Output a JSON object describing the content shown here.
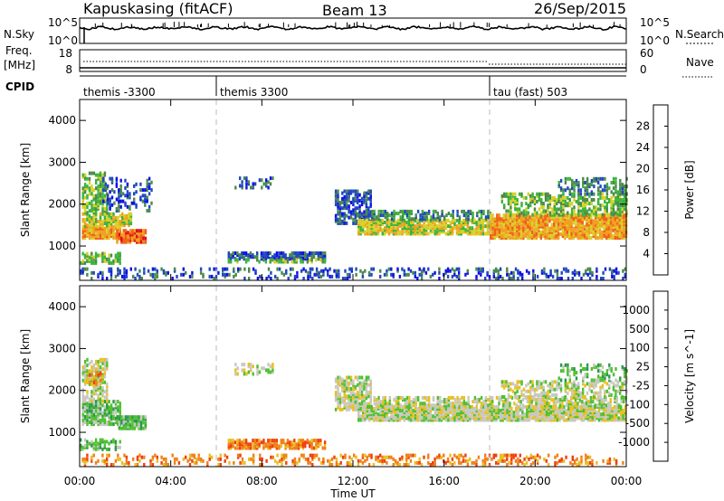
{
  "header": {
    "title": "Kapuskasing (fitACF)",
    "beam": "Beam 13",
    "date": "26/Sep/2015"
  },
  "status_panels": {
    "nsky_label": "N.Sky",
    "nsky_ticks": [
      "10^5",
      "10^0"
    ],
    "nsearch_label": "N.Search",
    "nsearch_ticks": [
      "10^5",
      "10^0"
    ],
    "freq_label": "Freq.",
    "freq_unit": "[MHz]",
    "freq_ticks": [
      "18",
      "8"
    ],
    "nave_label": "Nave",
    "nave_ticks": [
      "60",
      "0"
    ],
    "cpid_label": "CPID",
    "cpid_segments": [
      {
        "label": "themis -3300",
        "start_hour": 0
      },
      {
        "label": "themis 3300",
        "start_hour": 6
      },
      {
        "label": "tau (fast) 503",
        "start_hour": 18
      }
    ]
  },
  "chart_data": [
    {
      "type": "heatmap",
      "panel": "power",
      "ylabel": "Slant Range [km]",
      "xlabel": "Time UT",
      "x_ticks": [
        "00:00",
        "04:00",
        "08:00",
        "12:00",
        "16:00",
        "20:00",
        "00:00"
      ],
      "xlim": [
        0,
        24
      ],
      "ylim": [
        180,
        4500
      ],
      "y_ticks": [
        1000,
        2000,
        3000,
        4000
      ],
      "colorbar_label": "Power [dB]",
      "colorbar_ticks": [
        "4",
        "8",
        "12",
        "16",
        "20",
        "24",
        "28"
      ],
      "colorbar_colors": [
        "#1010e8",
        "#2048c0",
        "#4a8a4a",
        "#3cb43c",
        "#d8d028",
        "#f0a020",
        "#f06018",
        "#e01010"
      ],
      "regions": [
        {
          "t0": 0.1,
          "t1": 1.8,
          "r0": 1150,
          "r1": 1450,
          "c": 5,
          "d": 0.85
        },
        {
          "t0": 0.1,
          "t1": 2.3,
          "r0": 1450,
          "r1": 1750,
          "c": 4,
          "d": 0.7
        },
        {
          "t0": 0.1,
          "t1": 1.2,
          "r0": 1750,
          "r1": 2700,
          "c": 3,
          "d": 0.5
        },
        {
          "t0": 1.6,
          "t1": 2.9,
          "r0": 1050,
          "r1": 1350,
          "c": 6,
          "d": 0.8
        },
        {
          "t0": 1.0,
          "t1": 3.2,
          "r0": 1800,
          "r1": 2600,
          "c": 1,
          "d": 0.25
        },
        {
          "t0": 0.0,
          "t1": 1.8,
          "r0": 550,
          "r1": 800,
          "c": 3,
          "d": 0.5
        },
        {
          "t0": 6.5,
          "t1": 10.8,
          "r0": 650,
          "r1": 800,
          "c": 1,
          "d": 0.75
        },
        {
          "t0": 6.5,
          "t1": 10.8,
          "r0": 580,
          "r1": 650,
          "c": 3,
          "d": 0.5
        },
        {
          "t0": 6.8,
          "t1": 8.5,
          "r0": 2350,
          "r1": 2600,
          "c": 1,
          "d": 0.25
        },
        {
          "t0": 11.2,
          "t1": 12.8,
          "r0": 1500,
          "r1": 2300,
          "c": 1,
          "d": 0.6
        },
        {
          "t0": 12.2,
          "t1": 18.0,
          "r0": 1250,
          "r1": 1600,
          "c": 4,
          "d": 0.75
        },
        {
          "t0": 12.8,
          "t1": 18.0,
          "r0": 1600,
          "r1": 1800,
          "c": 2,
          "d": 0.45
        },
        {
          "t0": 18.0,
          "t1": 24.0,
          "r0": 1150,
          "r1": 1700,
          "c": 5,
          "d": 0.85
        },
        {
          "t0": 18.5,
          "t1": 24.0,
          "r0": 1700,
          "r1": 2200,
          "c": 3,
          "d": 0.45
        },
        {
          "t0": 21.0,
          "t1": 24.0,
          "r0": 2200,
          "r1": 2600,
          "c": 2,
          "d": 0.35
        },
        {
          "t0": 0.0,
          "t1": 24.0,
          "r0": 180,
          "r1": 450,
          "c": 1,
          "d": 0.25
        }
      ]
    },
    {
      "type": "heatmap",
      "panel": "velocity",
      "ylabel": "Slant Range [km]",
      "xlabel": "Time UT",
      "x_ticks": [
        "00:00",
        "04:00",
        "08:00",
        "12:00",
        "16:00",
        "20:00",
        "00:00"
      ],
      "xlim": [
        0,
        24
      ],
      "ylim": [
        180,
        4500
      ],
      "y_ticks": [
        1000,
        2000,
        3000,
        4000
      ],
      "colorbar_label": "Velocity [m s^-1]",
      "colorbar_ticks": [
        "1000",
        "500",
        "100",
        "25",
        "-25",
        "-100",
        "-500",
        "-1000"
      ],
      "colorbar_colors": [
        "#2040c8",
        "#207868",
        "#2a9a4a",
        "#50c030",
        "#c8c8c0",
        "#e8c020",
        "#f08018",
        "#f04010",
        "#e01010"
      ],
      "regions": [
        {
          "t0": 0.1,
          "t1": 1.8,
          "r0": 1150,
          "r1": 1700,
          "c": 3,
          "d": 0.7
        },
        {
          "t0": 0.1,
          "t1": 1.2,
          "r0": 1700,
          "r1": 2700,
          "c": 4,
          "d": 0.55
        },
        {
          "t0": 0.3,
          "t1": 1.0,
          "r0": 2100,
          "r1": 2500,
          "c": 6,
          "d": 0.35
        },
        {
          "t0": 1.6,
          "t1": 2.9,
          "r0": 1050,
          "r1": 1350,
          "c": 3,
          "d": 0.75
        },
        {
          "t0": 0.0,
          "t1": 1.8,
          "r0": 550,
          "r1": 800,
          "c": 3,
          "d": 0.45
        },
        {
          "t0": 6.5,
          "t1": 10.8,
          "r0": 580,
          "r1": 800,
          "c": 6,
          "d": 0.7
        },
        {
          "t0": 6.8,
          "t1": 8.5,
          "r0": 2350,
          "r1": 2600,
          "c": 4,
          "d": 0.25
        },
        {
          "t0": 11.2,
          "t1": 12.8,
          "r0": 1500,
          "r1": 2300,
          "c": 4,
          "d": 0.6
        },
        {
          "t0": 12.2,
          "t1": 24.0,
          "r0": 1250,
          "r1": 1600,
          "c": 4,
          "d": 0.85
        },
        {
          "t0": 12.8,
          "t1": 24.0,
          "r0": 1600,
          "r1": 1800,
          "c": 4,
          "d": 0.5
        },
        {
          "t0": 18.5,
          "t1": 24.0,
          "r0": 1800,
          "r1": 2200,
          "c": 4,
          "d": 0.4
        },
        {
          "t0": 21.0,
          "t1": 24.0,
          "r0": 2200,
          "r1": 2600,
          "c": 3,
          "d": 0.3
        },
        {
          "t0": 0.0,
          "t1": 24.0,
          "r0": 180,
          "r1": 450,
          "c": 6,
          "d": 0.25
        }
      ]
    }
  ]
}
